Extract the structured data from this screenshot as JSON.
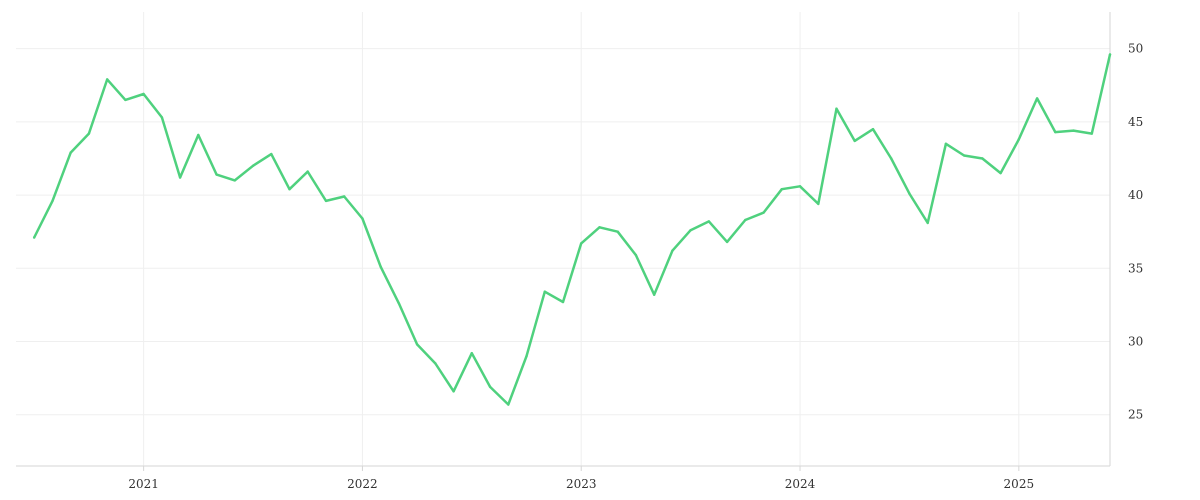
{
  "chart_data": {
    "type": "line",
    "title": "",
    "xlabel": "",
    "ylabel": "",
    "x_ticks": [
      "2021",
      "2022",
      "2023",
      "2024",
      "2025"
    ],
    "x_range": [
      "2020-06",
      "2025-06"
    ],
    "y_ticks": [
      25,
      30,
      35,
      40,
      45,
      50
    ],
    "ylim": [
      21.5,
      52.5
    ],
    "y_axis_position": "right",
    "grid": true,
    "legend": "none",
    "series_color": "#4fd17e",
    "series": [
      {
        "points": [
          [
            "2020-07",
            37.1
          ],
          [
            "2020-08",
            39.6
          ],
          [
            "2020-09",
            42.9
          ],
          [
            "2020-10",
            44.2
          ],
          [
            "2020-11",
            47.9
          ],
          [
            "2020-12",
            46.5
          ],
          [
            "2021-01",
            46.9
          ],
          [
            "2021-02",
            45.3
          ],
          [
            "2021-03",
            41.2
          ],
          [
            "2021-04",
            44.1
          ],
          [
            "2021-05",
            41.4
          ],
          [
            "2021-06",
            41.0
          ],
          [
            "2021-07",
            42.0
          ],
          [
            "2021-08",
            42.8
          ],
          [
            "2021-09",
            40.4
          ],
          [
            "2021-10",
            41.6
          ],
          [
            "2021-11",
            39.6
          ],
          [
            "2021-12",
            39.9
          ],
          [
            "2022-01",
            38.4
          ],
          [
            "2022-02",
            35.1
          ],
          [
            "2022-03",
            32.6
          ],
          [
            "2022-04",
            29.8
          ],
          [
            "2022-05",
            28.5
          ],
          [
            "2022-06",
            26.6
          ],
          [
            "2022-07",
            29.2
          ],
          [
            "2022-08",
            26.9
          ],
          [
            "2022-09",
            25.7
          ],
          [
            "2022-10",
            29.0
          ],
          [
            "2022-11",
            33.4
          ],
          [
            "2022-12",
            32.7
          ],
          [
            "2023-01",
            36.7
          ],
          [
            "2023-02",
            37.8
          ],
          [
            "2023-03",
            37.5
          ],
          [
            "2023-04",
            35.9
          ],
          [
            "2023-05",
            33.2
          ],
          [
            "2023-06",
            36.2
          ],
          [
            "2023-07",
            37.6
          ],
          [
            "2023-08",
            38.2
          ],
          [
            "2023-09",
            36.8
          ],
          [
            "2023-10",
            38.3
          ],
          [
            "2023-11",
            38.8
          ],
          [
            "2023-12",
            40.4
          ],
          [
            "2024-01",
            40.6
          ],
          [
            "2024-02",
            39.4
          ],
          [
            "2024-03",
            45.9
          ],
          [
            "2024-04",
            43.7
          ],
          [
            "2024-05",
            44.5
          ],
          [
            "2024-06",
            42.5
          ],
          [
            "2024-07",
            40.1
          ],
          [
            "2024-08",
            38.1
          ],
          [
            "2024-09",
            43.5
          ],
          [
            "2024-10",
            42.7
          ],
          [
            "2024-11",
            42.5
          ],
          [
            "2024-12",
            41.5
          ],
          [
            "2025-01",
            43.8
          ],
          [
            "2025-02",
            46.6
          ],
          [
            "2025-03",
            44.3
          ],
          [
            "2025-04",
            44.4
          ],
          [
            "2025-05",
            44.2
          ],
          [
            "2025-06",
            49.6
          ]
        ]
      }
    ]
  }
}
